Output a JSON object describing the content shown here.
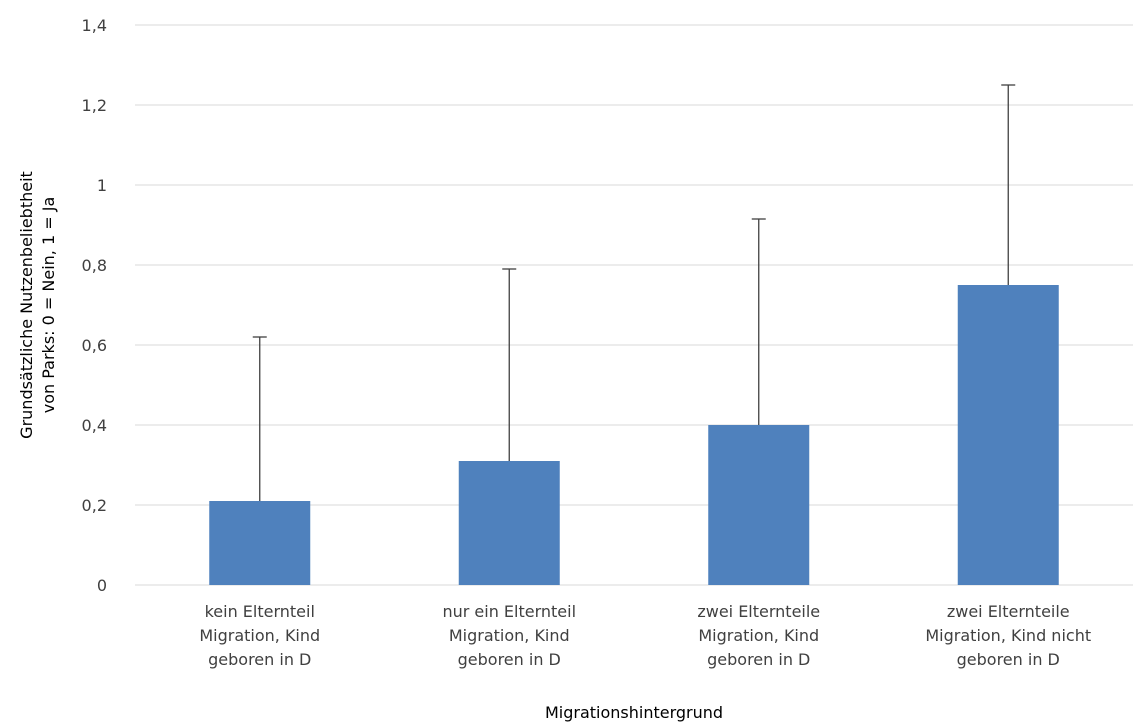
{
  "chart_data": {
    "type": "bar",
    "categories": [
      [
        "kein Elternteil",
        "Migration, Kind",
        "geboren in D"
      ],
      [
        "nur ein Elternteil",
        "Migration, Kind",
        "geboren in D"
      ],
      [
        "zwei Elternteile",
        "Migration, Kind",
        "geboren in D"
      ],
      [
        "zwei Elternteile",
        "Migration, Kind nicht",
        "geboren in D"
      ]
    ],
    "values": [
      0.21,
      0.31,
      0.4,
      0.75
    ],
    "error_upper": [
      0.62,
      0.79,
      0.915,
      1.25
    ],
    "xlabel": "Migrationshintergrund",
    "ylabel": [
      "Grundsätzliche Nutzenbeliebtheit",
      "von Parks: 0 = Nein, 1 = Ja"
    ],
    "ylim": [
      0,
      1.4
    ],
    "yticks": [
      "0",
      "0,2",
      "0,4",
      "0,6",
      "0,8",
      "1",
      "1,2",
      "1,4"
    ],
    "grid": true,
    "colors": {
      "bar": "#4f81bd",
      "grid": "#d9d9d9",
      "errorbar": "#404040"
    }
  }
}
